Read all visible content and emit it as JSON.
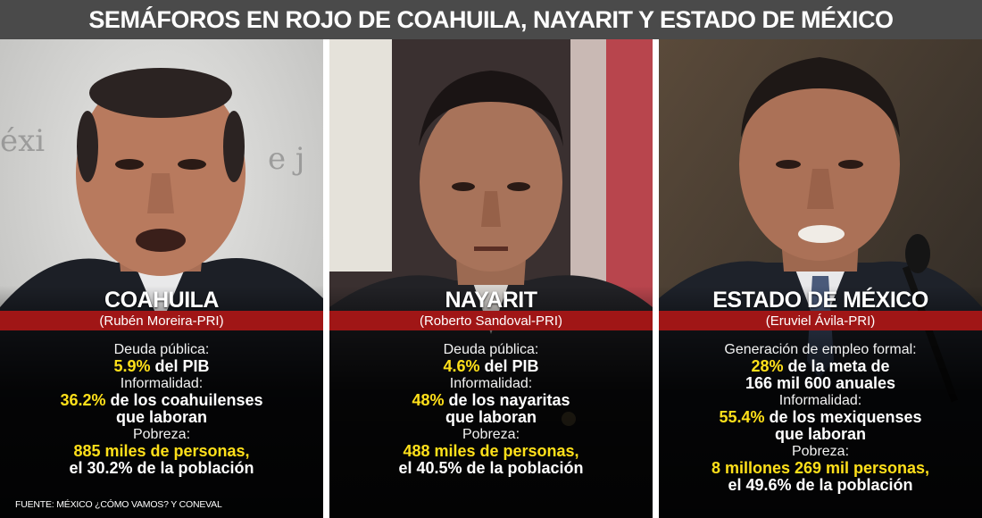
{
  "title": "SEMÁFOROS EN ROJO DE COAHUILA, NAYARIT Y ESTADO DE MÉXICO",
  "panels": [
    {
      "state": "COAHUILA",
      "governor": "(Rubén Moreira-PRI)",
      "lines": [
        {
          "label": "Deuda pública:"
        },
        {
          "hl": "5.9%",
          "rest": " del PIB"
        },
        {
          "label": "Informalidad:"
        },
        {
          "hl": "36.2%",
          "rest": " de los coahuilenses"
        },
        {
          "rest": "que laboran"
        },
        {
          "label": "Pobreza:"
        },
        {
          "hl": "885 miles de personas,",
          "rest": ""
        },
        {
          "rest": "el 30.2% de la población"
        }
      ]
    },
    {
      "state": "NAYARIT",
      "governor": "(Roberto Sandoval-PRI)",
      "lines": [
        {
          "label": "Deuda pública:"
        },
        {
          "hl": "4.6%",
          "rest": " del PIB"
        },
        {
          "label": "Informalidad:"
        },
        {
          "hl": "48%",
          "rest": " de los nayaritas"
        },
        {
          "rest": "que laboran"
        },
        {
          "label": "Pobreza:"
        },
        {
          "hl": "488 miles de personas,",
          "rest": ""
        },
        {
          "rest": "el 40.5% de la población"
        }
      ]
    },
    {
      "state": "ESTADO DE MÉXICO",
      "governor": "(Eruviel Ávila-PRI)",
      "lines": [
        {
          "label": "Generación de empleo formal:"
        },
        {
          "hl": "28%",
          "rest": " de la meta de"
        },
        {
          "rest": "166 mil 600 anuales"
        },
        {
          "label": "Informalidad:"
        },
        {
          "hl": "55.4%",
          "rest": " de los mexiquenses"
        },
        {
          "rest": "que laboran"
        },
        {
          "label": "Pobreza:"
        },
        {
          "hl": "8 millones 269 mil personas,",
          "rest": ""
        },
        {
          "rest": "el 49.6% de la población"
        }
      ]
    }
  ],
  "source": "FUENTE: MÉXICO ¿CÓMO VAMOS? Y CONEVAL",
  "colors": {
    "title_bar": "#4a4a4a",
    "red_band": "#a01616",
    "highlight": "#ffe01a"
  }
}
